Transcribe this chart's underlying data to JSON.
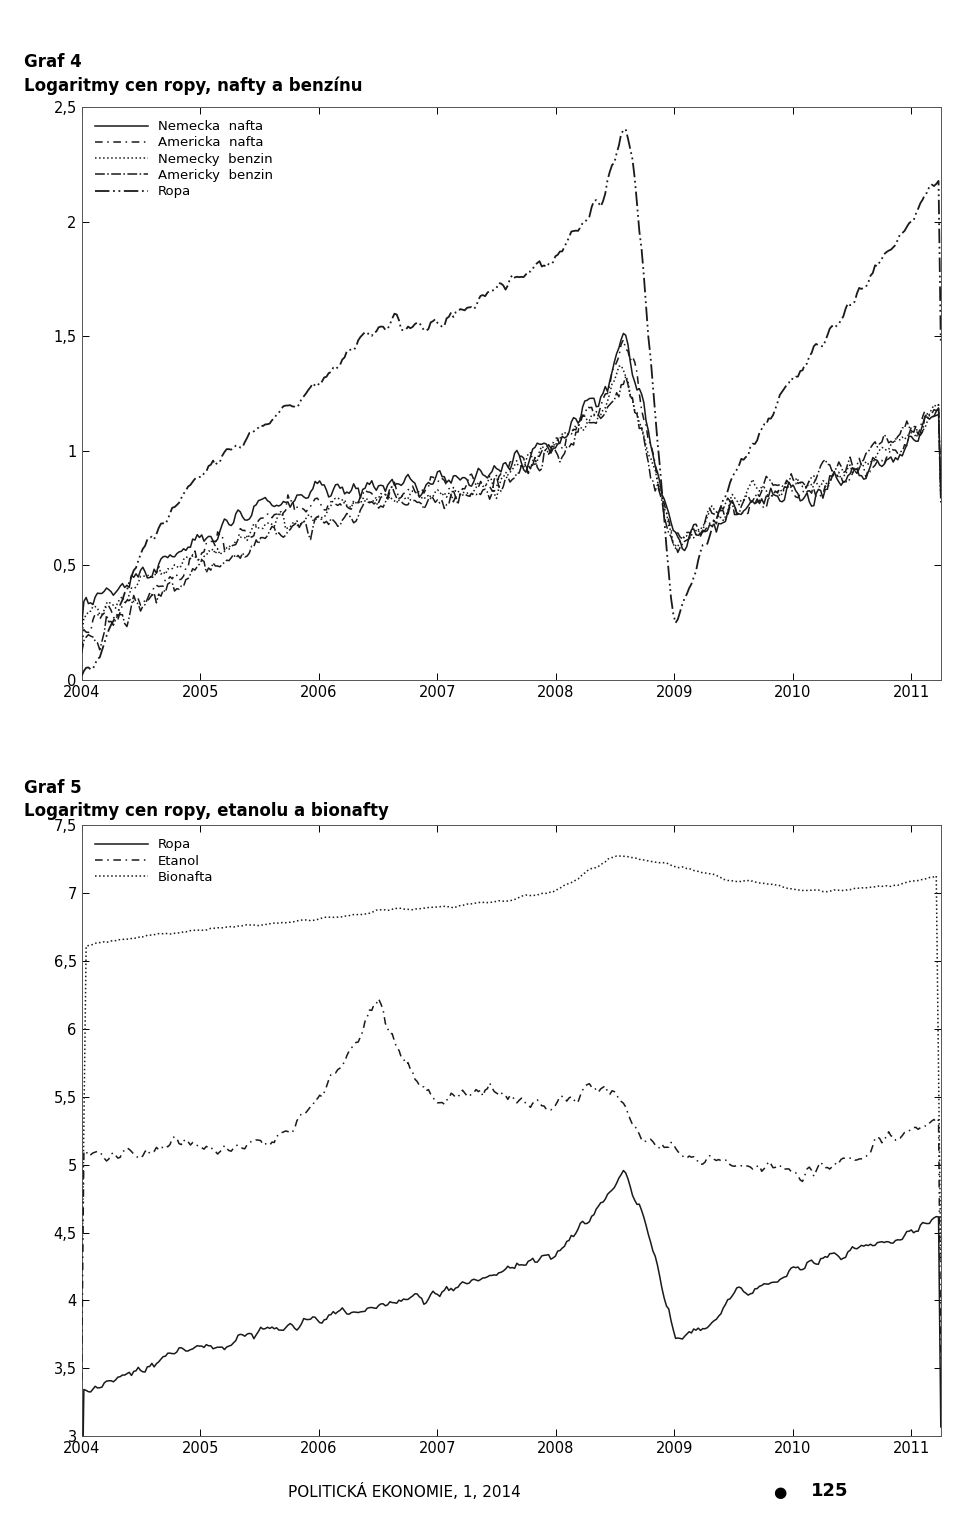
{
  "title1_line1": "Graf 4",
  "title1_line2": "Logaritmy cen ropy, nafty a benzínu",
  "title2_line1": "Graf 5",
  "title2_line2": "Logaritmy cen ropy, etanolu a bionafty",
  "chart1": {
    "ylim": [
      0,
      2.5
    ],
    "yticks": [
      0,
      0.5,
      1,
      1.5,
      2,
      2.5
    ],
    "ytick_labels": [
      "0",
      "0,5",
      "1",
      "1,5",
      "2",
      "2,5"
    ],
    "xlim_start": 2004.0,
    "xlim_end": 2011.25,
    "xticks": [
      2004,
      2005,
      2006,
      2007,
      2008,
      2009,
      2010,
      2011
    ]
  },
  "chart2": {
    "ylim": [
      3,
      7.5
    ],
    "yticks": [
      3,
      3.5,
      4,
      4.5,
      5,
      5.5,
      6,
      6.5,
      7,
      7.5
    ],
    "ytick_labels": [
      "3",
      "3,5",
      "4",
      "4,5",
      "5",
      "5,5",
      "6",
      "6,5",
      "7",
      "7,5"
    ],
    "xlim_start": 2004.0,
    "xlim_end": 2011.25,
    "xticks": [
      2004,
      2005,
      2006,
      2007,
      2008,
      2009,
      2010,
      2011
    ]
  },
  "footer": "POLITICKÁ EKONOMIE, 1, 2014",
  "footer_num": "125",
  "background_color": "#ffffff",
  "text_color": "#000000"
}
